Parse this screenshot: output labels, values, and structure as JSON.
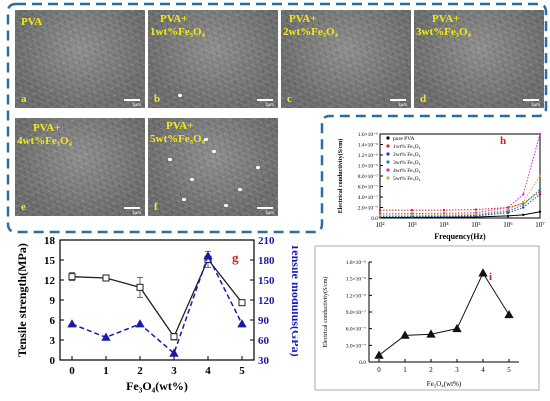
{
  "sem_panels": [
    {
      "id": "a",
      "line1": "PVA",
      "line2": ""
    },
    {
      "id": "b",
      "line1": "PVA+",
      "line2": "1wt%Fe₃O₄"
    },
    {
      "id": "c",
      "line1": "PVA+",
      "line2": "2wt%Fe₃O₄"
    },
    {
      "id": "d",
      "line1": "PVA+",
      "line2": "3wt%Fe₃O₄"
    },
    {
      "id": "e",
      "line1": "PVA+",
      "line2": "4wt%Fe₃O₄"
    },
    {
      "id": "f",
      "line1": "PVA+",
      "line2": "5wt%Fe₃O₄"
    }
  ],
  "scale_bar_label": "1µm",
  "colors": {
    "frame": "#2f6d9e",
    "sem_label": "#f2ea1a",
    "panel_letter": "#cc2222",
    "modulus": "#1a1aa8"
  },
  "chart_data": [
    {
      "panel": "g",
      "type": "line",
      "x": [
        0,
        1,
        2,
        3,
        4,
        5
      ],
      "xlabel": "Fe₃O₄(wt%)",
      "series": [
        {
          "axis": "left",
          "ylabel": "Tensile strength(MPa)",
          "values": [
            12.5,
            12.3,
            10.9,
            3.5,
            15.1,
            8.6
          ],
          "errors": [
            0.6,
            0.4,
            1.5,
            0.5,
            1.2,
            0.2
          ],
          "ylim": [
            0,
            18
          ],
          "yticks": [
            "0",
            "3",
            "6",
            "9",
            "12",
            "15",
            "18"
          ],
          "color": "#222222",
          "style": "solid",
          "marker": "square"
        },
        {
          "axis": "right",
          "ylabel": "Tensile modulus(GPa)",
          "values": [
            84,
            64,
            84,
            40,
            186,
            84
          ],
          "ylim": [
            30,
            210
          ],
          "yticks": [
            "30",
            "60",
            "90",
            "120",
            "150",
            "180",
            "210"
          ],
          "color": "#1a1aa8",
          "style": "dashed",
          "marker": "triangle"
        }
      ]
    },
    {
      "panel": "h",
      "type": "line",
      "xlabel": "Frequency(Hz)",
      "ylabel": "Electrical conductivity(S/cm)",
      "xscale": "log",
      "xlim": [
        100,
        10000000
      ],
      "xticks": [
        "10²",
        "10³",
        "10⁴",
        "10⁵",
        "10⁶",
        "10⁷"
      ],
      "yticks": [
        "0.0",
        "2.0×10⁻⁷",
        "4.0×10⁻⁷",
        "6.0×10⁻⁷",
        "8.0×10⁻⁷",
        "1.0×10⁻⁶",
        "1.2×10⁻⁶",
        "1.4×10⁻⁶",
        "1.6×10⁻⁶"
      ],
      "ylim": [
        0,
        1.6e-06
      ],
      "series": [
        {
          "name": "pure PVA",
          "color": "#000000",
          "x": [
            100,
            1000,
            10000,
            100000,
            1000000,
            3000000,
            10000000
          ],
          "values": [
            1e-08,
            1.2e-08,
            1.5e-08,
            2e-08,
            4e-08,
            6e-08,
            1.2e-07
          ]
        },
        {
          "name": "1wt% Fe₃O₄",
          "color": "#e32222",
          "x": [
            100,
            1000,
            10000,
            100000,
            1000000,
            3000000,
            10000000
          ],
          "values": [
            1.5e-07,
            1.5e-07,
            1.5e-07,
            1.6e-07,
            2e-07,
            2.8e-07,
            5e-07
          ]
        },
        {
          "name": "2wt% Fe₃O₄",
          "color": "#2a2ad8",
          "x": [
            100,
            1000,
            10000,
            100000,
            1000000,
            3000000,
            10000000
          ],
          "values": [
            2e-08,
            2.5e-08,
            3e-08,
            4e-08,
            1e-07,
            2e-07,
            4.5e-07
          ]
        },
        {
          "name": "3wt% Fe₃O₄",
          "color": "#1f8f8f",
          "x": [
            100,
            1000,
            10000,
            100000,
            1000000,
            3000000,
            10000000
          ],
          "values": [
            3e-08,
            3.5e-08,
            4e-08,
            5.5e-08,
            1.3e-07,
            2.5e-07,
            5.5e-07
          ]
        },
        {
          "name": "4wt% Fe₃O₄",
          "color": "#d62ad6",
          "x": [
            100,
            1000,
            10000,
            100000,
            1000000,
            3000000,
            10000000
          ],
          "values": [
            8e-08,
            8.5e-08,
            9e-08,
            1e-07,
            2e-07,
            4.5e-07,
            1.6e-06
          ]
        },
        {
          "name": "5wt% Fe₃O₄",
          "color": "#b8b82a",
          "x": [
            100,
            1000,
            10000,
            100000,
            1000000,
            3000000,
            10000000
          ],
          "values": [
            5e-08,
            5.5e-08,
            6e-08,
            7e-08,
            1.6e-07,
            3e-07,
            8e-07
          ]
        }
      ]
    },
    {
      "panel": "i",
      "type": "line",
      "x": [
        0,
        1,
        2,
        3,
        4,
        5
      ],
      "xlabel": "Fe₃O₄(wt%)",
      "ylabel": "Electrical conductivity(S/cm)",
      "ylim": [
        0,
        1.8e-06
      ],
      "yticks": [
        "0.0",
        "3.0×10⁻⁷",
        "6.0×10⁻⁷",
        "9.0×10⁻⁷",
        "1.2×10⁻⁶",
        "1.5×10⁻⁶",
        "1.8×10⁻⁶"
      ],
      "series": [
        {
          "color": "#111111",
          "marker": "triangle",
          "values": [
            1.2e-07,
            4.8e-07,
            5e-07,
            6e-07,
            1.6e-06,
            8.5e-07
          ]
        }
      ]
    }
  ]
}
